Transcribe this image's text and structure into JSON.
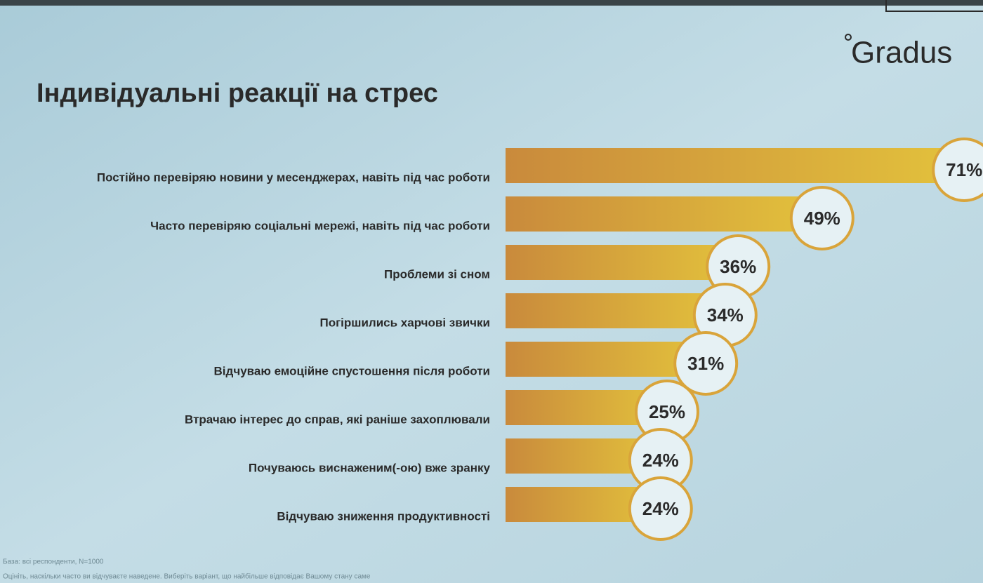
{
  "chart_data": {
    "type": "bar",
    "orientation": "horizontal",
    "title": "Індивідуальні реакції на стрес",
    "brand": "Gradus",
    "categories": [
      "Постійно перевіряю новини у месенджерах, навіть під час роботи",
      "Часто перевіряю соціальні мережі, навіть під час роботи",
      "Проблеми зі сном",
      "Погіршились харчові звички",
      "Відчуваю емоційне спустошення після роботи",
      "Втрачаю інтерес до справ, які раніше захоплювали",
      "Почуваюсь виснаженим(-ою) вже зранку",
      "Відчуваю зниження продуктивності"
    ],
    "values": [
      71,
      49,
      36,
      34,
      31,
      25,
      24,
      24
    ],
    "value_labels": [
      "71%",
      "49%",
      "36%",
      "34%",
      "31%",
      "25%",
      "24%",
      "24%"
    ],
    "color": "#d9a43a",
    "footnotes": [
      "База: всі респонденти, N=1000",
      "Оцініть, наскільки часто ви відчуваєте наведене. Виберіть варіант, що найбільше відповідає Вашому стану саме"
    ]
  }
}
